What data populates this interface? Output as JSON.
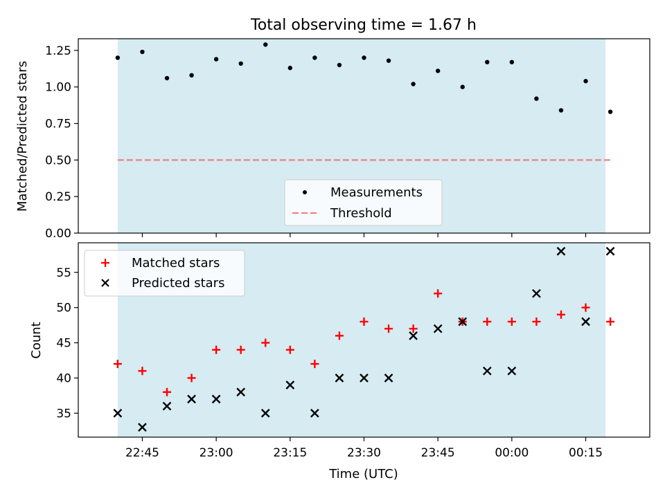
{
  "chart_data": [
    {
      "type": "scatter",
      "title": "Total observing time = 1.67 h",
      "xlabel": "",
      "ylabel": "Matched/Predicted stars",
      "ylim": [
        0,
        1.33
      ],
      "yticks": [
        "0.00",
        "0.25",
        "0.50",
        "0.75",
        "1.00",
        "1.25"
      ],
      "shaded_region": {
        "from": "22:40",
        "to": "00:19",
        "color": "#add8e6"
      },
      "series": [
        {
          "name": "Measurements",
          "marker": "dot",
          "color": "#000000",
          "x": [
            "22:40",
            "22:45",
            "22:50",
            "22:55",
            "23:00",
            "23:05",
            "23:10",
            "23:15",
            "23:20",
            "23:25",
            "23:30",
            "23:35",
            "23:40",
            "23:45",
            "23:50",
            "23:55",
            "00:00",
            "00:05",
            "00:10",
            "00:15",
            "00:20"
          ],
          "values": [
            1.2,
            1.24,
            1.06,
            1.08,
            1.19,
            1.16,
            1.29,
            1.13,
            1.2,
            1.15,
            1.2,
            1.18,
            1.02,
            1.11,
            1.0,
            1.17,
            1.17,
            0.92,
            0.84,
            1.04,
            0.83
          ]
        },
        {
          "name": "Threshold",
          "marker": "dashed-line",
          "color": "#f08080",
          "x": [
            "22:40",
            "00:20"
          ],
          "values": [
            0.5,
            0.5
          ]
        }
      ],
      "legend": "lower-center"
    },
    {
      "type": "scatter",
      "title": "",
      "xlabel": "Time (UTC)",
      "ylabel": "Count",
      "ylim": [
        31.6,
        59.2
      ],
      "yticks": [
        "35",
        "40",
        "45",
        "50",
        "55"
      ],
      "xticks": [
        "22:45",
        "23:00",
        "23:15",
        "23:30",
        "23:45",
        "00:00",
        "00:15"
      ],
      "shaded_region": {
        "from": "22:40",
        "to": "00:19",
        "color": "#add8e6"
      },
      "series": [
        {
          "name": "Matched stars",
          "marker": "plus",
          "color": "#ff0000",
          "x": [
            "22:40",
            "22:45",
            "22:50",
            "22:55",
            "23:00",
            "23:05",
            "23:10",
            "23:15",
            "23:20",
            "23:25",
            "23:30",
            "23:35",
            "23:40",
            "23:45",
            "23:50",
            "23:55",
            "00:00",
            "00:05",
            "00:10",
            "00:15",
            "00:20"
          ],
          "values": [
            42,
            41,
            38,
            40,
            44,
            44,
            45,
            44,
            42,
            46,
            48,
            47,
            47,
            52,
            48,
            48,
            48,
            48,
            49,
            50,
            48
          ]
        },
        {
          "name": "Predicted stars",
          "marker": "x",
          "color": "#000000",
          "x": [
            "22:40",
            "22:45",
            "22:50",
            "22:55",
            "23:00",
            "23:05",
            "23:10",
            "23:15",
            "23:20",
            "23:25",
            "23:30",
            "23:35",
            "23:40",
            "23:45",
            "23:50",
            "23:55",
            "00:00",
            "00:05",
            "00:10",
            "00:15",
            "00:20"
          ],
          "values": [
            35,
            33,
            36,
            37,
            37,
            38,
            35,
            39,
            35,
            40,
            40,
            40,
            46,
            47,
            48,
            41,
            41,
            52,
            58,
            48,
            58
          ]
        }
      ],
      "legend": "top-left"
    }
  ]
}
